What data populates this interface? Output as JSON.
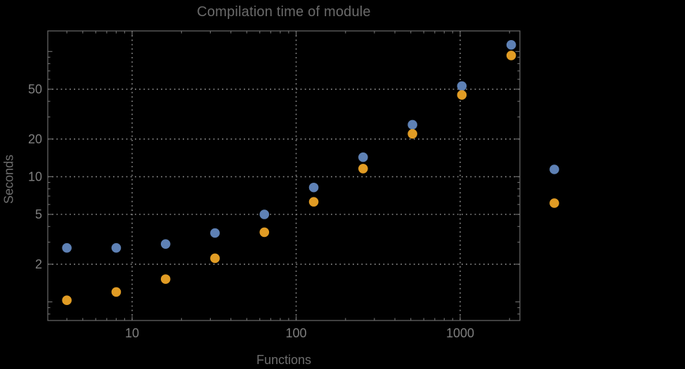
{
  "chart_data": {
    "type": "scatter",
    "title": "Compilation time of module",
    "xlabel": "Functions",
    "ylabel": "Seconds",
    "x_scale": "log",
    "y_scale": "log",
    "x_range": [
      3.06,
      2313
    ],
    "y_range": [
      0.71,
      146
    ],
    "grid": "dotted",
    "background": "#000000",
    "frame_color": "#6b6b6b",
    "grid_color": "#858585",
    "tick_label_color": "#7f7f7f",
    "x_axis": {
      "labeled_ticks": [
        10,
        100,
        1000
      ],
      "unlabeled_major_ticks": [],
      "minor_ticks": [
        4,
        5,
        6,
        7,
        8,
        9,
        20,
        30,
        40,
        50,
        60,
        70,
        80,
        90,
        200,
        300,
        400,
        500,
        600,
        700,
        800,
        900,
        2000
      ],
      "gridlines": [
        10,
        100,
        1000
      ]
    },
    "y_axis": {
      "labeled_ticks": [
        2,
        5,
        10,
        20,
        50
      ],
      "unlabeled_major_ticks": [
        1,
        100
      ],
      "minor_ticks": [
        0.8,
        0.9,
        3,
        4,
        6,
        7,
        8,
        9,
        30,
        40,
        60,
        70,
        80,
        90
      ],
      "gridlines": [
        2,
        5,
        10,
        20,
        50
      ]
    },
    "series": [
      {
        "name": "series-1-blue",
        "color": "#5E81B5",
        "marker": "circle",
        "points": [
          [
            4,
            2.7
          ],
          [
            8,
            2.7
          ],
          [
            16,
            2.9
          ],
          [
            32,
            3.55
          ],
          [
            64,
            5.0
          ],
          [
            128,
            8.2
          ],
          [
            256,
            14.3
          ],
          [
            512,
            26
          ],
          [
            1024,
            53
          ],
          [
            2048,
            113
          ]
        ]
      },
      {
        "name": "series-2-orange",
        "color": "#E19C24",
        "marker": "circle",
        "points": [
          [
            4,
            1.03
          ],
          [
            8,
            1.2
          ],
          [
            16,
            1.52
          ],
          [
            32,
            2.23
          ],
          [
            64,
            3.6
          ],
          [
            128,
            6.3
          ],
          [
            256,
            11.6
          ],
          [
            512,
            22
          ],
          [
            1024,
            45
          ],
          [
            2048,
            93
          ]
        ]
      }
    ],
    "legend": {
      "position": "right-outside",
      "markers": [
        {
          "series": "series-1-blue",
          "color": "#5E81B5",
          "label": ""
        },
        {
          "series": "series-2-orange",
          "color": "#E19C24",
          "label": ""
        }
      ]
    }
  }
}
